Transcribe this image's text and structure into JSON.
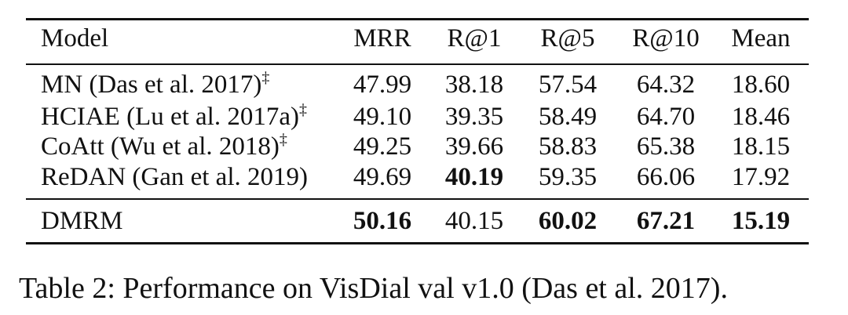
{
  "table": {
    "headers": [
      "Model",
      "MRR",
      "R@1",
      "R@5",
      "R@10",
      "Mean"
    ],
    "rows": [
      {
        "model": "MN (Das et al. 2017)",
        "marker": "‡",
        "values": [
          "47.99",
          "38.18",
          "57.54",
          "64.32",
          "18.60"
        ],
        "bold": [
          false,
          false,
          false,
          false,
          false
        ]
      },
      {
        "model": "HCIAE (Lu et al. 2017a)",
        "marker": "‡",
        "values": [
          "49.10",
          "39.35",
          "58.49",
          "64.70",
          "18.46"
        ],
        "bold": [
          false,
          false,
          false,
          false,
          false
        ]
      },
      {
        "model": "CoAtt (Wu et al. 2018)",
        "marker": "‡",
        "values": [
          "49.25",
          "39.66",
          "58.83",
          "65.38",
          "18.15"
        ],
        "bold": [
          false,
          false,
          false,
          false,
          false
        ]
      },
      {
        "model": "ReDAN (Gan et al. 2019)",
        "marker": "",
        "values": [
          "49.69",
          "40.19",
          "59.35",
          "66.06",
          "17.92"
        ],
        "bold": [
          false,
          true,
          false,
          false,
          false
        ]
      }
    ],
    "ours": {
      "model": "DMRM",
      "marker": "",
      "values": [
        "50.16",
        "40.15",
        "60.02",
        "67.21",
        "15.19"
      ],
      "bold": [
        true,
        false,
        true,
        true,
        true
      ]
    }
  },
  "caption": "Table 2: Performance on VisDial val v1.0 (Das et al. 2017)."
}
